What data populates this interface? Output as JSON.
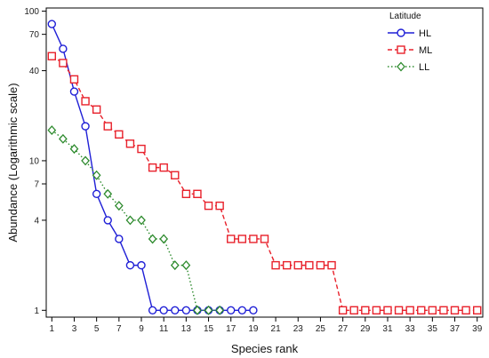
{
  "chart_data": {
    "type": "line",
    "title": "",
    "xlabel": "Species rank",
    "ylabel": "Abundance (Logarithmic scale)",
    "yscale": "log",
    "xlim": [
      0.5,
      39.5
    ],
    "ylim": [
      0.9,
      105
    ],
    "x_ticks": [
      1,
      3,
      5,
      7,
      9,
      11,
      13,
      15,
      17,
      19,
      21,
      23,
      25,
      27,
      29,
      31,
      33,
      35,
      37,
      39
    ],
    "y_ticks": [
      1,
      4,
      7,
      10,
      40,
      70,
      100
    ],
    "grid": false,
    "legend": {
      "title": "Latitude",
      "placement": "top-right"
    },
    "series": [
      {
        "name": "HL",
        "color": "#1f1fd6",
        "marker": "circle",
        "line_style": "solid",
        "x": [
          1,
          2,
          3,
          4,
          5,
          6,
          7,
          8,
          9,
          10,
          11,
          12,
          13,
          14,
          15,
          16,
          17,
          18,
          19
        ],
        "y": [
          82,
          56,
          29,
          17,
          6,
          4,
          3,
          2,
          2,
          1,
          1,
          1,
          1,
          1,
          1,
          1,
          1,
          1,
          1
        ]
      },
      {
        "name": "ML",
        "color": "#e8212b",
        "marker": "square",
        "line_style": "dashed",
        "x": [
          1,
          2,
          3,
          4,
          5,
          6,
          7,
          8,
          9,
          10,
          11,
          12,
          13,
          14,
          15,
          16,
          17,
          18,
          19,
          20,
          21,
          22,
          23,
          24,
          25,
          26,
          27,
          28,
          29,
          30,
          31,
          32,
          33,
          34,
          35,
          36,
          37,
          38,
          39
        ],
        "y": [
          50,
          45,
          35,
          25,
          22,
          17,
          15,
          13,
          12,
          9,
          9,
          8,
          6,
          6,
          5,
          5,
          3,
          3,
          3,
          3,
          2,
          2,
          2,
          2,
          2,
          2,
          1,
          1,
          1,
          1,
          1,
          1,
          1,
          1,
          1,
          1,
          1,
          1,
          1
        ]
      },
      {
        "name": "LL",
        "color": "#2e8b2e",
        "marker": "diamond",
        "line_style": "dotted",
        "x": [
          1,
          2,
          3,
          4,
          5,
          6,
          7,
          8,
          9,
          10,
          11,
          12,
          13,
          14,
          15,
          16
        ],
        "y": [
          16,
          14,
          12,
          10,
          8,
          6,
          5,
          4,
          4,
          3,
          3,
          2,
          2,
          1,
          1,
          1
        ]
      }
    ]
  }
}
